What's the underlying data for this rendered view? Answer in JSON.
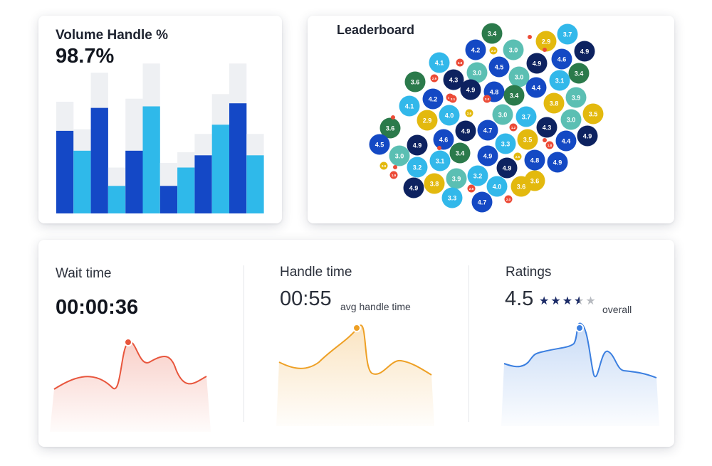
{
  "volume": {
    "title": "Volume Handle %",
    "value": "98.7%",
    "chart_data": {
      "type": "bar",
      "ylim": [
        0,
        100
      ],
      "colors": [
        "#1448c6",
        "#2fb9ea"
      ],
      "background_color": "#eef0f3",
      "values": [
        54,
        41,
        69,
        18,
        41,
        70,
        18,
        30,
        38,
        58,
        72,
        38
      ],
      "totals": [
        73,
        55,
        92,
        30,
        75,
        98,
        33,
        40,
        52,
        78,
        98,
        52
      ]
    }
  },
  "leaderboard": {
    "title": "Leaderboard",
    "colors": {
      "navy": "#0d2260",
      "blue": "#1449c4",
      "sky": "#32b8ea",
      "teal": "#5bbfb3",
      "green": "#2b7a4b",
      "gold": "#e3b90e",
      "red": "#ec4b37"
    },
    "bubbles": [
      {
        "label": "3.4",
        "color": "green"
      },
      {
        "label": "3.7",
        "color": "sky"
      },
      {
        "label": "2.9",
        "color": "gold"
      },
      {
        "label": "4.2",
        "color": "blue"
      },
      {
        "label": "3.0",
        "color": "teal"
      },
      {
        "label": "4.6",
        "color": "blue"
      },
      {
        "label": "4.9",
        "color": "navy"
      },
      {
        "label": "4.1",
        "color": "sky"
      },
      {
        "label": "4.5",
        "color": "blue"
      },
      {
        "label": "4.9",
        "color": "navy"
      },
      {
        "label": "3.0",
        "color": "teal"
      },
      {
        "label": "3.0",
        "color": "teal"
      },
      {
        "label": "3.4",
        "color": "green"
      },
      {
        "label": "3.6",
        "color": "green"
      },
      {
        "label": "4.3",
        "color": "navy"
      },
      {
        "label": "4.8",
        "color": "blue"
      },
      {
        "label": "3.1",
        "color": "sky"
      },
      {
        "label": "4.4",
        "color": "blue"
      },
      {
        "label": "4.9",
        "color": "navy"
      },
      {
        "label": "3.4",
        "color": "green"
      },
      {
        "label": "4.2",
        "color": "blue"
      },
      {
        "label": "3.9",
        "color": "teal"
      },
      {
        "label": "4.1",
        "color": "sky"
      },
      {
        "label": "3.8",
        "color": "gold"
      },
      {
        "label": "2.9",
        "color": "gold"
      },
      {
        "label": "4.0",
        "color": "sky"
      },
      {
        "label": "3.0",
        "color": "teal"
      },
      {
        "label": "3.7",
        "color": "sky"
      },
      {
        "label": "3.0",
        "color": "teal"
      },
      {
        "label": "3.5",
        "color": "gold"
      },
      {
        "label": "3.6",
        "color": "green"
      },
      {
        "label": "4.9",
        "color": "navy"
      },
      {
        "label": "4.7",
        "color": "blue"
      },
      {
        "label": "4.3",
        "color": "navy"
      },
      {
        "label": "4.9",
        "color": "navy"
      },
      {
        "label": "4.6",
        "color": "blue"
      },
      {
        "label": "3.5",
        "color": "gold"
      },
      {
        "label": "4.4",
        "color": "blue"
      },
      {
        "label": "4.5",
        "color": "blue"
      },
      {
        "label": "4.9",
        "color": "navy"
      },
      {
        "label": "3.3",
        "color": "sky"
      },
      {
        "label": "3.0",
        "color": "teal"
      },
      {
        "label": "3.4",
        "color": "green"
      },
      {
        "label": "3.1",
        "color": "sky"
      },
      {
        "label": "4.9",
        "color": "blue"
      },
      {
        "label": "3.2",
        "color": "sky"
      },
      {
        "label": "4.9",
        "color": "blue"
      },
      {
        "label": "4.8",
        "color": "blue"
      },
      {
        "label": "4.9",
        "color": "navy"
      },
      {
        "label": "3.9",
        "color": "teal"
      },
      {
        "label": "3.2",
        "color": "sky"
      },
      {
        "label": "3.6",
        "color": "gold"
      },
      {
        "label": "4.0",
        "color": "sky"
      },
      {
        "label": "3.6",
        "color": "gold"
      },
      {
        "label": "3.8",
        "color": "gold"
      },
      {
        "label": "3.3",
        "color": "sky"
      },
      {
        "label": "4.9",
        "color": "navy"
      },
      {
        "label": "4.7",
        "color": "blue"
      }
    ],
    "small_bubbles": [
      {
        "label": "2.3",
        "color": "gold"
      },
      {
        "label": "2.9",
        "color": "red"
      },
      {
        "label": "2.8",
        "color": "red"
      },
      {
        "label": "1.9",
        "color": "red"
      },
      {
        "label": "2.1",
        "color": "red"
      },
      {
        "label": "2.0",
        "color": "red"
      },
      {
        "label": "2.6",
        "color": "gold"
      },
      {
        "label": "1.2",
        "color": "red"
      },
      {
        "label": "1.8",
        "color": "red"
      },
      {
        "label": "2.5",
        "color": "gold"
      },
      {
        "label": "2.9",
        "color": "gold"
      },
      {
        "label": "1.9",
        "color": "red"
      },
      {
        "label": "2.6",
        "color": "red"
      },
      {
        "label": "2.0",
        "color": "red"
      }
    ]
  },
  "metrics": {
    "wait": {
      "title": "Wait time",
      "value": "00:00:36",
      "color": "#e8563d"
    },
    "handle": {
      "title": "Handle time",
      "value": "00:55",
      "sub": "avg handle time",
      "color": "#eea025"
    },
    "ratings": {
      "title": "Ratings",
      "value": "4.5",
      "sub": "overall",
      "stars": 3.5,
      "max_stars": 5,
      "color": "#3b7fe0"
    }
  }
}
